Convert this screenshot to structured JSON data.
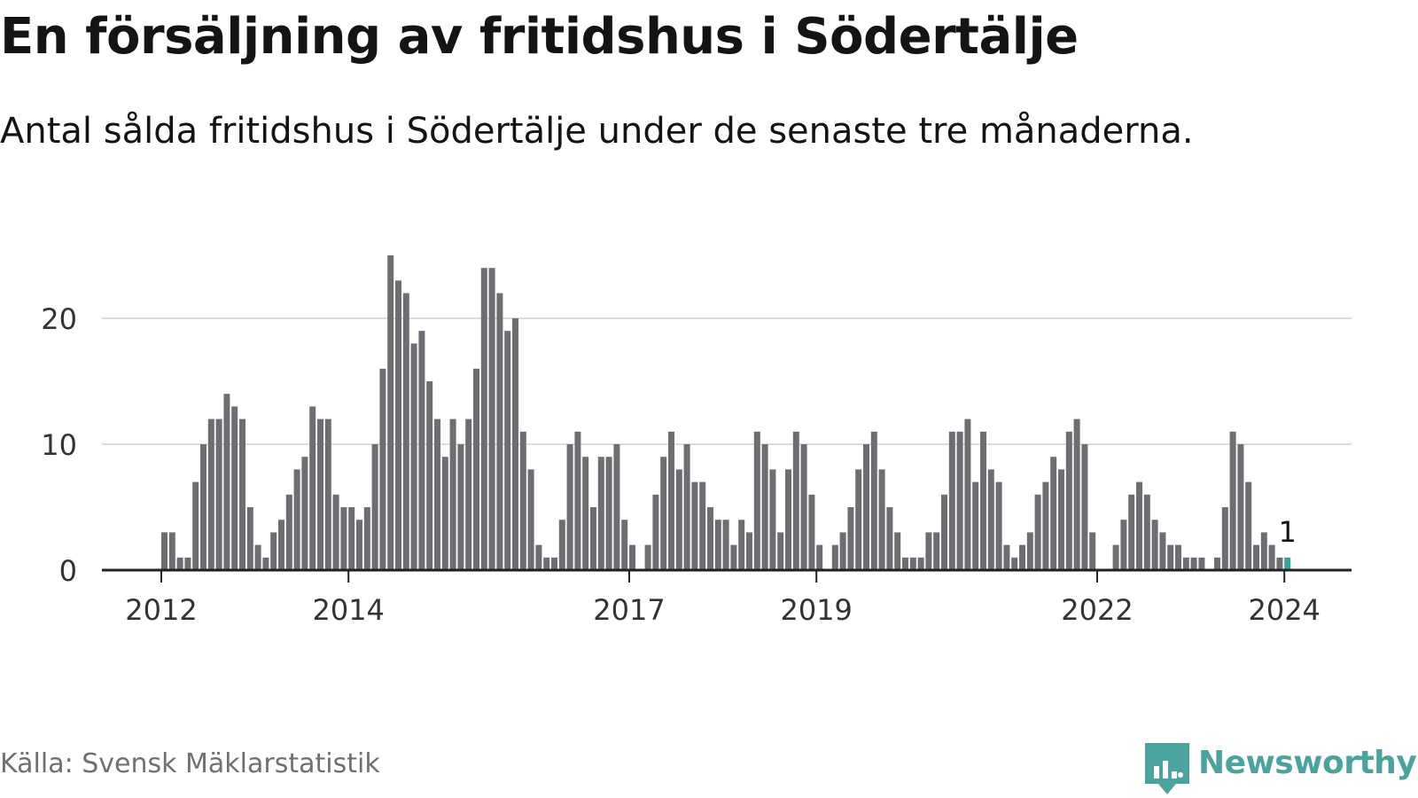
{
  "header": {
    "title": "En försäljning av fritidshus i Södertälje",
    "subtitle": "Antal sålda fritidshus i Södertälje under de senaste tre månaderna."
  },
  "footer": {
    "source": "Källa: Svensk Mäklarstatistik",
    "brand": "Newsworthy"
  },
  "colors": {
    "bar": "#6e6e72",
    "highlight": "#33a39c",
    "grid": "#dcdcdc",
    "axis": "#222222",
    "text": "#141414",
    "tick_text": "#333333",
    "brand": "#4aa39c"
  },
  "chart_data": {
    "type": "bar",
    "title": "En försäljning av fritidshus i Södertälje",
    "subtitle": "Antal sålda fritidshus i Södertälje under de senaste tre månaderna.",
    "xlabel": "",
    "ylabel": "",
    "ylim": [
      0,
      25
    ],
    "yticks": [
      0,
      10,
      20
    ],
    "grid": true,
    "legend": "none",
    "start": "2012-01",
    "end": "2024-01",
    "frequency": "monthly",
    "xticks": [
      {
        "label": "2012",
        "date": "2012-01"
      },
      {
        "label": "2014",
        "date": "2014-01"
      },
      {
        "label": "2017",
        "date": "2017-01"
      },
      {
        "label": "2019",
        "date": "2019-01"
      },
      {
        "label": "2022",
        "date": "2022-01"
      },
      {
        "label": "2024",
        "date": "2024-01"
      }
    ],
    "values": [
      3,
      3,
      1,
      1,
      7,
      10,
      12,
      12,
      14,
      13,
      12,
      5,
      2,
      1,
      3,
      4,
      6,
      8,
      9,
      13,
      12,
      12,
      6,
      5,
      5,
      4,
      5,
      10,
      16,
      25,
      23,
      22,
      18,
      19,
      15,
      12,
      9,
      12,
      10,
      12,
      16,
      24,
      24,
      22,
      19,
      20,
      11,
      8,
      2,
      1,
      1,
      4,
      10,
      11,
      9,
      5,
      9,
      9,
      10,
      4,
      2,
      0,
      2,
      6,
      9,
      11,
      8,
      10,
      7,
      7,
      5,
      4,
      4,
      2,
      4,
      3,
      11,
      10,
      8,
      3,
      8,
      11,
      10,
      6,
      2,
      0,
      2,
      3,
      5,
      8,
      10,
      11,
      8,
      5,
      3,
      1,
      1,
      1,
      3,
      3,
      6,
      11,
      11,
      12,
      7,
      11,
      8,
      7,
      2,
      1,
      2,
      3,
      6,
      7,
      9,
      8,
      11,
      12,
      10,
      3,
      0,
      0,
      2,
      4,
      6,
      7,
      6,
      4,
      3,
      2,
      2,
      1,
      1,
      1,
      0,
      1,
      5,
      11,
      10,
      7,
      2,
      3,
      2,
      1,
      1
    ],
    "highlight": {
      "index": 144,
      "date": "2024-01",
      "value": 1,
      "label": "1"
    }
  }
}
